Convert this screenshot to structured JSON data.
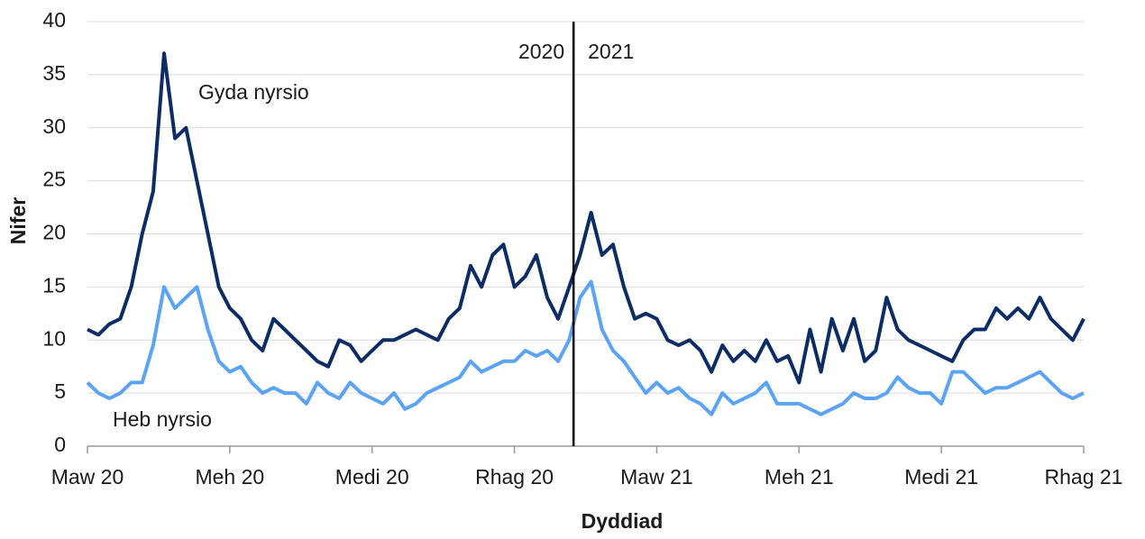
{
  "chart_data": {
    "type": "line",
    "x_label": "Dyddiad",
    "y_label": "Nifer",
    "categories": [
      "Maw 20",
      null,
      null,
      null,
      null,
      null,
      null,
      null,
      null,
      null,
      null,
      null,
      null,
      "Meh 20",
      null,
      null,
      null,
      null,
      null,
      null,
      null,
      null,
      null,
      null,
      null,
      null,
      "Medi 20",
      null,
      null,
      null,
      null,
      null,
      null,
      null,
      null,
      null,
      null,
      null,
      null,
      "Rhag 20",
      null,
      null,
      null,
      null,
      null,
      null,
      null,
      null,
      null,
      null,
      null,
      null,
      "Maw 21",
      null,
      null,
      null,
      null,
      null,
      null,
      null,
      null,
      null,
      null,
      null,
      null,
      "Meh 21",
      null,
      null,
      null,
      null,
      null,
      null,
      null,
      null,
      null,
      null,
      null,
      null,
      "Medi 21",
      null,
      null,
      null,
      null,
      null,
      null,
      null,
      null,
      null,
      null,
      null,
      null,
      "Rhag 21"
    ],
    "series": [
      {
        "name": "Gyda nyrsio",
        "color": "#0b2c64",
        "values": [
          11,
          10.5,
          11.5,
          12,
          15,
          20,
          24,
          37,
          29,
          30,
          25,
          20,
          15,
          13,
          12,
          10,
          9,
          12,
          11,
          10,
          9,
          8,
          7.5,
          10,
          9.5,
          8,
          9,
          10,
          10,
          10.5,
          11,
          10.5,
          10,
          12,
          13,
          17,
          15,
          18,
          19,
          15,
          16,
          18,
          14,
          12,
          15,
          18,
          22,
          18,
          19,
          15,
          12,
          12.5,
          12,
          10,
          9.5,
          10,
          9,
          7,
          9.5,
          8,
          9,
          8,
          10,
          8,
          8.5,
          6,
          11,
          7,
          12,
          9,
          12,
          8,
          9,
          14,
          11,
          10,
          9.5,
          9,
          8.5,
          8,
          10,
          11,
          11,
          13,
          12,
          13,
          12,
          14,
          12,
          11,
          10,
          12
        ]
      },
      {
        "name": "Heb nyrsio",
        "color": "#5ba3f5",
        "values": [
          6,
          5,
          4.5,
          5,
          6,
          6,
          9.5,
          15,
          13,
          14,
          15,
          11,
          8,
          7,
          7.5,
          6,
          5,
          5.5,
          5,
          5,
          4,
          6,
          5,
          4.5,
          6,
          5,
          4.5,
          4,
          5,
          3.5,
          4,
          5,
          5.5,
          6,
          6.5,
          8,
          7,
          7.5,
          8,
          8,
          9,
          8.5,
          9,
          8,
          10,
          14,
          15.5,
          11,
          9,
          8,
          6.5,
          5,
          6,
          5,
          5.5,
          4.5,
          4,
          3,
          5,
          4,
          4.5,
          5,
          6,
          4,
          4,
          4,
          3.5,
          3,
          3.5,
          4,
          5,
          4.5,
          4.5,
          5,
          6.5,
          5.5,
          5,
          5,
          4,
          7,
          7,
          6,
          5,
          5.5,
          5.5,
          6,
          6.5,
          7,
          6,
          5,
          4.5,
          5
        ]
      }
    ],
    "divider": {
      "x": 44.4,
      "labels": [
        "2020",
        "2021"
      ]
    },
    "ylim": [
      0,
      40
    ],
    "yticks": [
      0,
      5,
      10,
      15,
      20,
      25,
      30,
      35,
      40
    ],
    "grid": true
  }
}
